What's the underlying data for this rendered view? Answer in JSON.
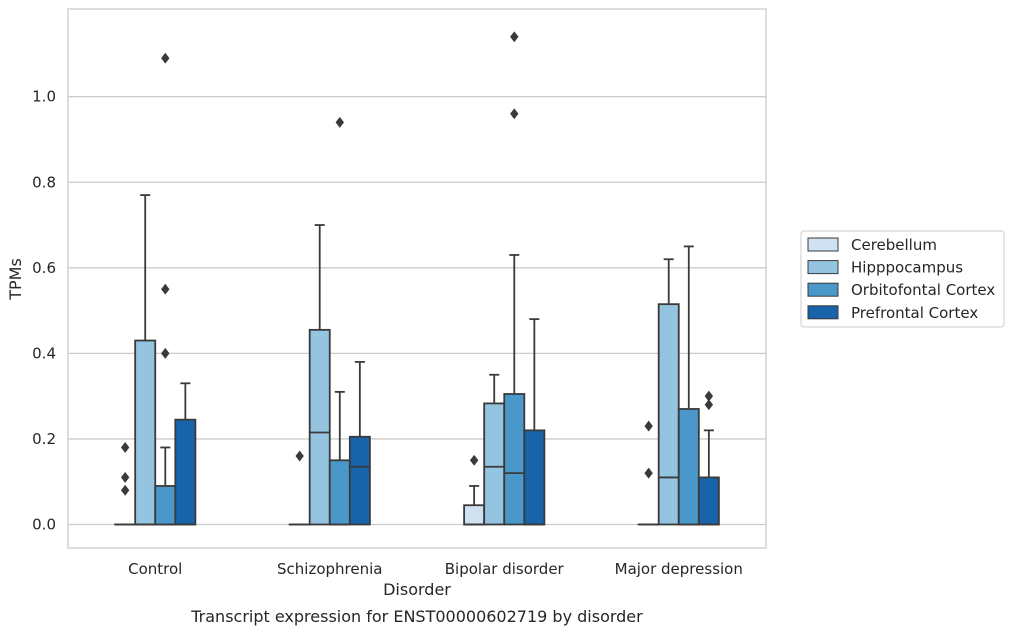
{
  "chart_data": {
    "type": "box",
    "title": "",
    "caption": "Transcript expression for ENST00000602719 by disorder",
    "xlabel": "Disorder",
    "ylabel": "TPMs",
    "ylim": [
      -0.055,
      1.205
    ],
    "yticks": [
      0.0,
      0.2,
      0.4,
      0.6,
      0.8,
      1.0
    ],
    "ytick_labels": [
      "0.0",
      "0.2",
      "0.4",
      "0.6",
      "0.8",
      "1.0"
    ],
    "grid": "horizontal",
    "legend_position": "right",
    "categories": [
      "Control",
      "Schizophrenia",
      "Bipolar disorder",
      "Major depression"
    ],
    "series": [
      {
        "name": "Cerebellum",
        "color": "#d0e1f2",
        "boxes": [
          {
            "q1": 0.0,
            "median": 0.0,
            "q3": 0.0,
            "whisker_low": 0.0,
            "whisker_high": 0.0,
            "outliers": [
              0.08,
              0.11,
              0.18
            ]
          },
          {
            "q1": 0.0,
            "median": 0.0,
            "q3": 0.0,
            "whisker_low": 0.0,
            "whisker_high": 0.0,
            "outliers": [
              0.16
            ]
          },
          {
            "q1": 0.0,
            "median": 0.0,
            "q3": 0.045,
            "whisker_low": 0.0,
            "whisker_high": 0.09,
            "outliers": [
              0.15
            ]
          },
          {
            "q1": 0.0,
            "median": 0.0,
            "q3": 0.0,
            "whisker_low": 0.0,
            "whisker_high": 0.0,
            "outliers": [
              0.12,
              0.23
            ]
          }
        ]
      },
      {
        "name": "Hipppocampus",
        "color": "#94c4df",
        "boxes": [
          {
            "q1": 0.0,
            "median": 0.0,
            "q3": 0.43,
            "whisker_low": 0.0,
            "whisker_high": 0.77,
            "outliers": []
          },
          {
            "q1": 0.0,
            "median": 0.215,
            "q3": 0.455,
            "whisker_low": 0.0,
            "whisker_high": 0.7,
            "outliers": []
          },
          {
            "q1": 0.0,
            "median": 0.135,
            "q3": 0.283,
            "whisker_low": 0.0,
            "whisker_high": 0.35,
            "outliers": []
          },
          {
            "q1": 0.0,
            "median": 0.11,
            "q3": 0.515,
            "whisker_low": 0.0,
            "whisker_high": 0.62,
            "outliers": []
          }
        ]
      },
      {
        "name": "Orbitofontal Cortex",
        "color": "#4a98c9",
        "boxes": [
          {
            "q1": 0.0,
            "median": 0.0,
            "q3": 0.09,
            "whisker_low": 0.0,
            "whisker_high": 0.18,
            "outliers": [
              0.4,
              0.55,
              1.09
            ]
          },
          {
            "q1": 0.0,
            "median": 0.0,
            "q3": 0.15,
            "whisker_low": 0.0,
            "whisker_high": 0.31,
            "outliers": [
              0.94
            ]
          },
          {
            "q1": 0.0,
            "median": 0.12,
            "q3": 0.305,
            "whisker_low": 0.0,
            "whisker_high": 0.63,
            "outliers": [
              0.96,
              1.14
            ]
          },
          {
            "q1": 0.0,
            "median": 0.0,
            "q3": 0.27,
            "whisker_low": 0.0,
            "whisker_high": 0.65,
            "outliers": []
          }
        ]
      },
      {
        "name": "Prefrontal Cortex",
        "color": "#1764ab",
        "boxes": [
          {
            "q1": 0.0,
            "median": 0.0,
            "q3": 0.245,
            "whisker_low": 0.0,
            "whisker_high": 0.33,
            "outliers": []
          },
          {
            "q1": 0.0,
            "median": 0.135,
            "q3": 0.205,
            "whisker_low": 0.0,
            "whisker_high": 0.38,
            "outliers": []
          },
          {
            "q1": 0.0,
            "median": 0.0,
            "q3": 0.22,
            "whisker_low": 0.0,
            "whisker_high": 0.48,
            "outliers": []
          },
          {
            "q1": 0.0,
            "median": 0.0,
            "q3": 0.11,
            "whisker_low": 0.0,
            "whisker_high": 0.22,
            "outliers": [
              0.28,
              0.3
            ]
          }
        ]
      }
    ]
  }
}
